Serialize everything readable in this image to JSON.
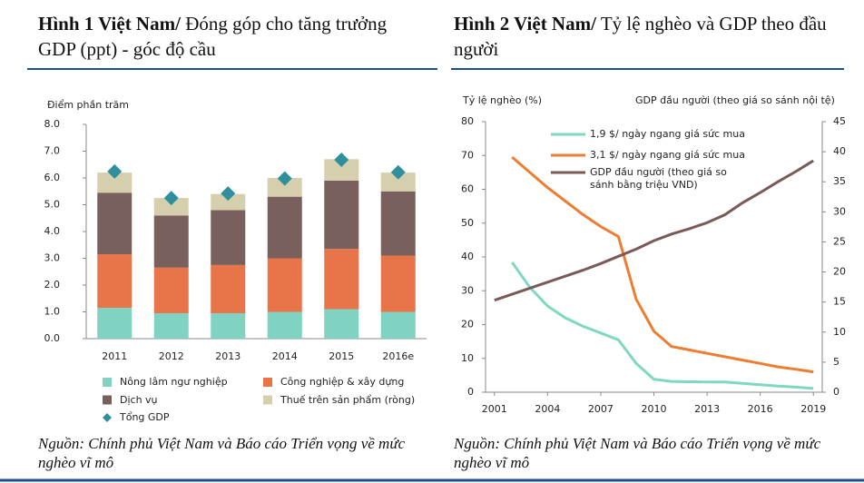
{
  "chart_data": [
    {
      "type": "stacked_bar",
      "figure_label": "Hình 1 Việt Nam/",
      "title": "Đóng góp cho tăng trưởng GDP (ppt) - góc độ cầu",
      "ylabel": "Điểm phần trăm",
      "categories": [
        "2011",
        "2012",
        "2013",
        "2014",
        "2015",
        "2016e"
      ],
      "ylim": [
        0,
        8
      ],
      "yticks": [
        {
          "value": 0,
          "label": "0.0"
        },
        {
          "value": 1,
          "label": "1.0"
        },
        {
          "value": 2,
          "label": "2.0"
        },
        {
          "value": 3,
          "label": "3.0"
        },
        {
          "value": 4,
          "label": "4.0"
        },
        {
          "value": 5,
          "label": "5.0"
        },
        {
          "value": 6,
          "label": "6.0"
        },
        {
          "value": 7,
          "label": "7.0"
        },
        {
          "value": 8,
          "label": "8.0"
        }
      ],
      "series": [
        {
          "name": "Nông lâm ngư nghiệp",
          "type": "bar",
          "color": "#7fd3c0",
          "values": [
            1.15,
            0.95,
            0.95,
            1.0,
            1.1,
            1.0
          ]
        },
        {
          "name": "Công nghiệp & xây dựng",
          "type": "bar",
          "color": "#e8744a",
          "values": [
            2.0,
            1.7,
            1.8,
            2.0,
            2.25,
            2.1
          ]
        },
        {
          "name": "Dịch vụ",
          "type": "bar",
          "color": "#7a605c",
          "values": [
            2.3,
            1.95,
            2.05,
            2.3,
            2.55,
            2.4
          ]
        },
        {
          "name": "Thuế trên sản phẩm (ròng)",
          "type": "bar",
          "color": "#d6cfae",
          "values": [
            0.75,
            0.65,
            0.6,
            0.7,
            0.8,
            0.7
          ]
        },
        {
          "name": "Tổng GDP",
          "type": "scatter",
          "color": "#2f8f9c",
          "values": [
            6.24,
            5.25,
            5.42,
            5.98,
            6.68,
            6.21
          ]
        }
      ],
      "source": "Nguồn: Chính phủ Việt Nam và Báo cáo Triển vọng về mức nghèo vĩ mô"
    },
    {
      "type": "line",
      "figure_label": "Hình 2 Việt Nam/",
      "title": "Tỷ lệ nghèo và GDP theo đầu người",
      "ylabel": "Tỷ lệ nghèo (%)",
      "y2label": "GDP đầu người (theo giá so sánh nội tệ)",
      "x": [
        2001,
        2002,
        2003,
        2004,
        2005,
        2006,
        2007,
        2008,
        2009,
        2010,
        2011,
        2012,
        2013,
        2014,
        2015,
        2016,
        2017,
        2018,
        2019
      ],
      "xlim": [
        2000.5,
        2019.5
      ],
      "xticks": [
        2001,
        2004,
        2007,
        2010,
        2013,
        2016,
        2019
      ],
      "ylim": [
        0,
        80
      ],
      "yticks": [
        0,
        10,
        20,
        30,
        40,
        50,
        60,
        70,
        80
      ],
      "y2lim": [
        0,
        45
      ],
      "y2ticks": [
        0,
        5,
        10,
        15,
        20,
        25,
        30,
        35,
        40,
        45
      ],
      "series": [
        {
          "name": "1,9 $/ ngày ngang giá sức mua",
          "color": "#7fd8c0",
          "values": [
            null,
            38.4,
            31,
            25.5,
            22,
            19.5,
            17.5,
            15.5,
            8.5,
            3.8,
            3.2,
            3.1,
            3.0,
            3.0,
            2.6,
            2.2,
            1.8,
            1.5,
            1.1
          ]
        },
        {
          "name": "3,1 $/ ngày ngang giá sức mua",
          "color": "#ed7d31",
          "values": [
            null,
            69.5,
            65,
            60.5,
            56.5,
            52.5,
            49,
            46,
            27.5,
            18,
            13.5,
            12.5,
            11.5,
            10.5,
            9.5,
            8.5,
            7.5,
            6.8,
            6
          ]
        },
        {
          "name": "GDP đầu người (theo giá so sánh bằng triệu VND)",
          "color": "#7a5a58",
          "axis": "y2",
          "values": [
            15.3,
            16.3,
            17.3,
            18.3,
            19.3,
            20.3,
            21.4,
            22.6,
            23.8,
            25.2,
            26.3,
            27.2,
            28.2,
            29.5,
            31.5,
            33.2,
            35,
            36.7,
            38.5
          ]
        }
      ],
      "source": "Nguồn: Chính phủ Việt Nam và Báo cáo Triển vọng về mức nghèo vĩ mô"
    }
  ]
}
